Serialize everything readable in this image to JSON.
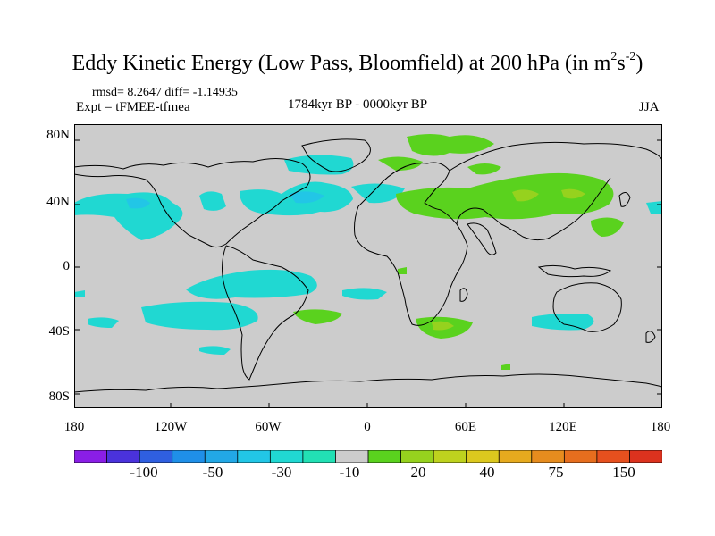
{
  "title_main": "Eddy Kinetic Energy (Low Pass, Bloomfield) at 200 hPa (in m",
  "title_sup1": "2",
  "title_s": "s",
  "title_sup2": "-2",
  "title_close": ")",
  "rmsd_line": "rmsd= 8.2647 diff= -1.14935",
  "expt_line": "Expt = tFMEE-tfmea",
  "period": "1784kyr BP - 0000kyr BP",
  "season": "JJA",
  "lat_labels": [
    "80N",
    "40N",
    "0",
    "40S",
    "80S"
  ],
  "lon_labels": [
    "180",
    "120W",
    "60W",
    "0",
    "60E",
    "120E",
    "180"
  ],
  "colorbar": {
    "labels": [
      "-100",
      "-50",
      "-30",
      "-10",
      "20",
      "40",
      "75",
      "150"
    ],
    "colors": [
      "#8a1ee6",
      "#4a32dc",
      "#2f5fe0",
      "#1f8fe8",
      "#22a8e6",
      "#22c6e6",
      "#20d8d2",
      "#22e0b4",
      "#cccccc",
      "#5ad21e",
      "#96d21e",
      "#bed21e",
      "#dcc81e",
      "#e6aa1e",
      "#e68c1e",
      "#e66e1e",
      "#e6501e",
      "#dc321e"
    ]
  },
  "fill_colors": {
    "land_bg": "#cccccc",
    "cyan": "#20d8d2",
    "teal": "#22c6e6",
    "blue": "#1f8fe8",
    "green": "#5ad21e",
    "yellowgreen": "#96d21e"
  }
}
